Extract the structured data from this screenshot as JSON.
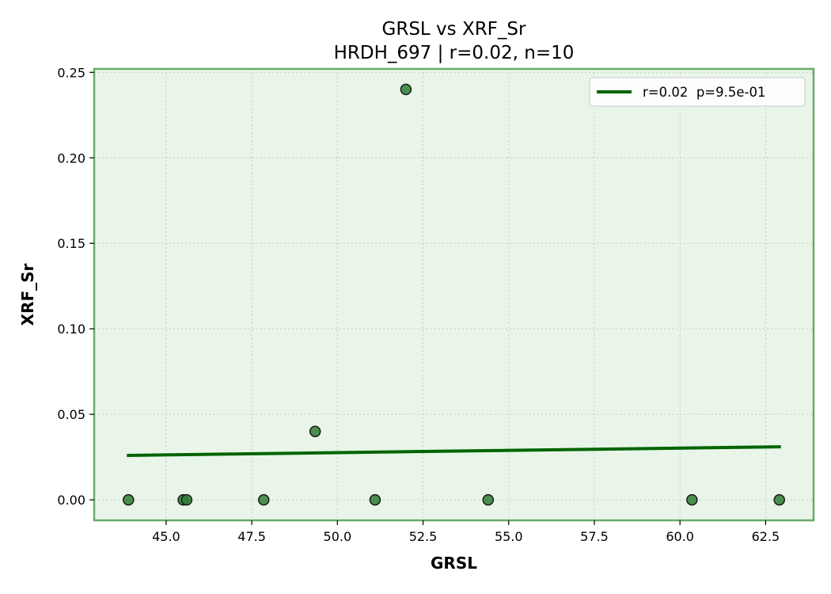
{
  "chart_data": {
    "type": "scatter",
    "title": "GRSL vs XRF_Sr",
    "subtitle": "HRDH_697 | r=0.02, n=10",
    "xlabel": "GRSL",
    "ylabel": "XRF_Sr",
    "xlim": [
      42.9,
      63.9
    ],
    "ylim": [
      -0.012,
      0.252
    ],
    "x_ticks": [
      45.0,
      47.5,
      50.0,
      52.5,
      55.0,
      57.5,
      60.0,
      62.5
    ],
    "x_tick_labels": [
      "45.0",
      "47.5",
      "50.0",
      "52.5",
      "55.0",
      "57.5",
      "60.0",
      "62.5"
    ],
    "y_ticks": [
      0.0,
      0.05,
      0.1,
      0.15,
      0.2,
      0.25
    ],
    "y_tick_labels": [
      "0.00",
      "0.05",
      "0.10",
      "0.15",
      "0.20",
      "0.25"
    ],
    "grid": true,
    "legend_position": "top-right",
    "points": [
      {
        "x": 43.9,
        "y": 0.0
      },
      {
        "x": 45.5,
        "y": 0.0
      },
      {
        "x": 45.6,
        "y": 0.0
      },
      {
        "x": 47.85,
        "y": 0.0
      },
      {
        "x": 49.35,
        "y": 0.04
      },
      {
        "x": 51.1,
        "y": 0.0
      },
      {
        "x": 52.0,
        "y": 0.24
      },
      {
        "x": 54.4,
        "y": 0.0
      },
      {
        "x": 60.35,
        "y": 0.0
      },
      {
        "x": 62.9,
        "y": 0.0
      }
    ],
    "fit_line": {
      "label": "r=0.02  p=9.5e-01",
      "x": [
        43.9,
        62.9
      ],
      "y": [
        0.026,
        0.031
      ]
    },
    "colors": {
      "background": "#e8f5e8",
      "frame": "#6aaa6a",
      "point_fill": "#2e7d32",
      "point_edge": "#1a1a1a",
      "fit_line": "#006400",
      "grid": "#c8c8c8"
    }
  }
}
